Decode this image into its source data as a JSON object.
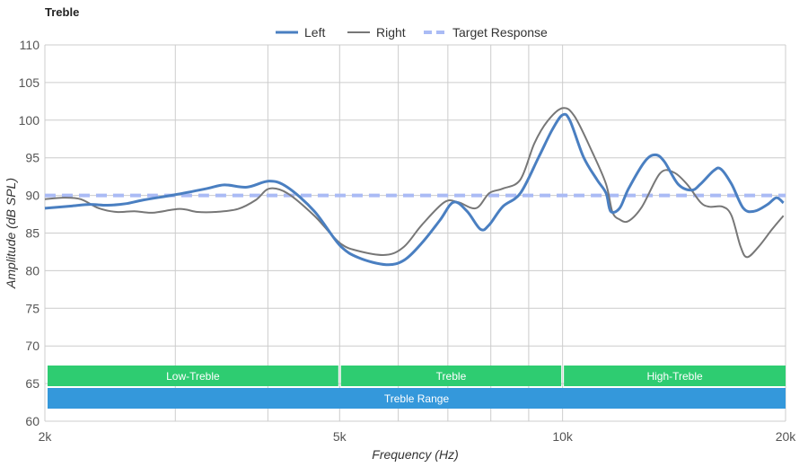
{
  "chart_data": {
    "type": "line",
    "title": "Treble",
    "xlabel": "Frequency (Hz)",
    "ylabel": "Amplitude (dB SPL)",
    "xscale": "log",
    "xlim": [
      2000,
      20000
    ],
    "ylim": [
      60,
      110
    ],
    "yticks": [
      60,
      65,
      70,
      75,
      80,
      85,
      90,
      95,
      100,
      105,
      110
    ],
    "xticks": [
      {
        "v": 2000,
        "label": "2k"
      },
      {
        "v": 5000,
        "label": "5k"
      },
      {
        "v": 10000,
        "label": "10k"
      },
      {
        "v": 20000,
        "label": "20k"
      }
    ],
    "xgrid": [
      3000,
      4000,
      5000,
      6000,
      7000,
      8000,
      9000,
      10000,
      20000
    ],
    "legend_position": "top-center",
    "series": [
      {
        "name": "Left",
        "color": "#4a7fc1",
        "points": [
          [
            2000,
            88.3
          ],
          [
            2176,
            88.6
          ],
          [
            2299,
            88.8
          ],
          [
            2431,
            88.7
          ],
          [
            2571,
            88.9
          ],
          [
            2718,
            89.4
          ],
          [
            3000,
            90.1
          ],
          [
            3305,
            90.9
          ],
          [
            3494,
            91.4
          ],
          [
            3748,
            91.1
          ],
          [
            4017,
            91.9
          ],
          [
            4249,
            91.1
          ],
          [
            4622,
            87.9
          ],
          [
            5000,
            83.4
          ],
          [
            5311,
            81.7
          ],
          [
            5780,
            80.8
          ],
          [
            6110,
            81.4
          ],
          [
            6459,
            83.7
          ],
          [
            6829,
            86.7
          ],
          [
            7124,
            89.1
          ],
          [
            7430,
            87.9
          ],
          [
            7748,
            85.5
          ],
          [
            7962,
            86.1
          ],
          [
            8300,
            88.5
          ],
          [
            8770,
            90.3
          ],
          [
            9285,
            95.1
          ],
          [
            9680,
            98.7
          ],
          [
            10000,
            100.7
          ],
          [
            10235,
            99.9
          ],
          [
            10672,
            95.1
          ],
          [
            11127,
            92.1
          ],
          [
            11447,
            90.3
          ],
          [
            11610,
            87.9
          ],
          [
            11940,
            88.3
          ],
          [
            12276,
            90.9
          ],
          [
            12910,
            94.5
          ],
          [
            13340,
            95.4
          ],
          [
            13720,
            94.5
          ],
          [
            14320,
            91.5
          ],
          [
            14930,
            90.7
          ],
          [
            15350,
            91.5
          ],
          [
            16000,
            93.3
          ],
          [
            16360,
            93.5
          ],
          [
            16910,
            91.5
          ],
          [
            17540,
            88.3
          ],
          [
            18150,
            87.9
          ],
          [
            18910,
            88.8
          ],
          [
            19440,
            89.7
          ],
          [
            19870,
            89.0
          ]
        ]
      },
      {
        "name": "Right",
        "color": "#777777",
        "points": [
          [
            2000,
            89.5
          ],
          [
            2118,
            89.7
          ],
          [
            2236,
            89.5
          ],
          [
            2364,
            88.3
          ],
          [
            2500,
            87.8
          ],
          [
            2643,
            87.9
          ],
          [
            2795,
            87.7
          ],
          [
            3040,
            88.2
          ],
          [
            3214,
            87.8
          ],
          [
            3398,
            87.8
          ],
          [
            3645,
            88.2
          ],
          [
            3854,
            89.4
          ],
          [
            4017,
            90.9
          ],
          [
            4249,
            90.3
          ],
          [
            4622,
            87.3
          ],
          [
            5000,
            83.7
          ],
          [
            5311,
            82.6
          ],
          [
            5780,
            82.1
          ],
          [
            6110,
            83.2
          ],
          [
            6459,
            86.1
          ],
          [
            6925,
            89.1
          ],
          [
            7224,
            89.1
          ],
          [
            7640,
            88.3
          ],
          [
            7962,
            90.3
          ],
          [
            8300,
            90.9
          ],
          [
            8770,
            92.1
          ],
          [
            9158,
            96.9
          ],
          [
            9546,
            99.9
          ],
          [
            10000,
            101.6
          ],
          [
            10380,
            100.5
          ],
          [
            10973,
            95.7
          ],
          [
            11447,
            91.5
          ],
          [
            11675,
            87.8
          ],
          [
            11940,
            86.8
          ],
          [
            12276,
            86.6
          ],
          [
            12800,
            88.5
          ],
          [
            13530,
            92.9
          ],
          [
            14100,
            93.1
          ],
          [
            14720,
            91.5
          ],
          [
            15350,
            89.1
          ],
          [
            15780,
            88.5
          ],
          [
            16450,
            88.5
          ],
          [
            16910,
            87.3
          ],
          [
            17390,
            83.2
          ],
          [
            17750,
            81.8
          ],
          [
            18400,
            83.2
          ],
          [
            19180,
            85.5
          ],
          [
            19870,
            87.3
          ]
        ]
      },
      {
        "name": "Target Response",
        "color": "#aabbf5",
        "dashed": true,
        "points": [
          [
            2000,
            90
          ],
          [
            20000,
            90
          ]
        ]
      }
    ],
    "bands": [
      {
        "label": "Low-Treble",
        "from": 2000,
        "to": 5000,
        "row": 0,
        "color": "#2ecc71"
      },
      {
        "label": "Treble",
        "from": 5000,
        "to": 10000,
        "row": 0,
        "color": "#2ecc71"
      },
      {
        "label": "High-Treble",
        "from": 10000,
        "to": 20000,
        "row": 0,
        "color": "#2ecc71"
      },
      {
        "label": "Treble Range",
        "from": 2000,
        "to": 20000,
        "row": 1,
        "color": "#3498db"
      }
    ]
  }
}
